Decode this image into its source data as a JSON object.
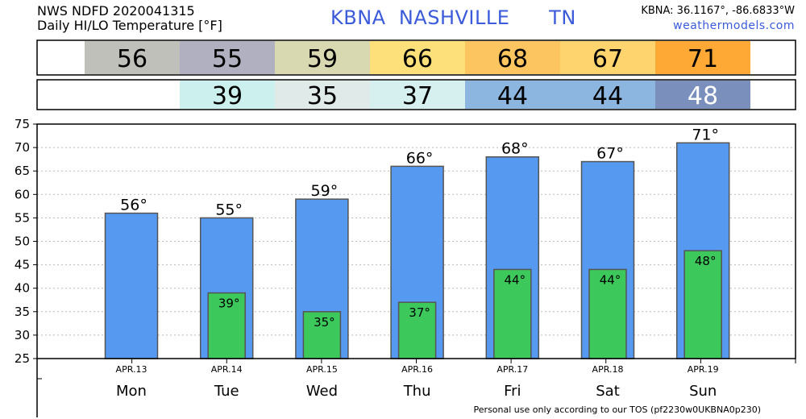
{
  "header": {
    "title_line1": "NWS NDFD 2020041315",
    "title_line2": "Daily HI/LO Temperature [°F]",
    "station": "KBNA  NASHVILLE      TN",
    "coords": "KBNA: 36.1167°, -86.6833°W",
    "site": "weathermodels.com"
  },
  "footer": "Personal use only according to our TOS (pf2230w0UKBNA0p230)",
  "colors": {
    "hi_bar": "#5599f0",
    "lo_bar": "#3cc85a",
    "bar_border": "#555555",
    "grid": "#bbbbbb",
    "hi_cells": [
      "#c0c0ba",
      "#b0b0c0",
      "#d8d9b0",
      "#fee07a",
      "#fcc560",
      "#fed46e",
      "#fea835"
    ],
    "lo_cells": [
      "#ffffff",
      "#ccf0ee",
      "#e0ebe9",
      "#d6f0ef",
      "#8cb6df",
      "#8cb6df",
      "#7b8fbd"
    ],
    "lo_text": [
      "#000000",
      "#000000",
      "#000000",
      "#000000",
      "#000000",
      "#000000",
      "#ffffff"
    ]
  },
  "hi_row": [
    "56",
    "55",
    "59",
    "66",
    "68",
    "67",
    "71"
  ],
  "lo_row": [
    "",
    "39",
    "35",
    "37",
    "44",
    "44",
    "48"
  ],
  "chart_data": {
    "type": "bar",
    "categories": [
      "Mon",
      "Tue",
      "Wed",
      "Thu",
      "Fri",
      "Sat",
      "Sun"
    ],
    "dates": [
      "APR.13",
      "APR.14",
      "APR.15",
      "APR.16",
      "APR.17",
      "APR.18",
      "APR.19"
    ],
    "series": [
      {
        "values": [
          56,
          55,
          59,
          66,
          68,
          67,
          71
        ],
        "labels": [
          "56°",
          "55°",
          "59°",
          "66°",
          "68°",
          "67°",
          "71°"
        ]
      },
      {
        "values": [
          null,
          39,
          35,
          37,
          44,
          44,
          48
        ],
        "labels": [
          "",
          "39°",
          "35°",
          "37°",
          "44°",
          "44°",
          "48°"
        ]
      }
    ],
    "ylim": [
      25,
      75
    ],
    "yticks": [
      "25",
      "30",
      "35",
      "40",
      "45",
      "50",
      "55",
      "60",
      "65",
      "70",
      "75"
    ],
    "grid": true,
    "title": "",
    "xlabel": "",
    "ylabel": ""
  }
}
